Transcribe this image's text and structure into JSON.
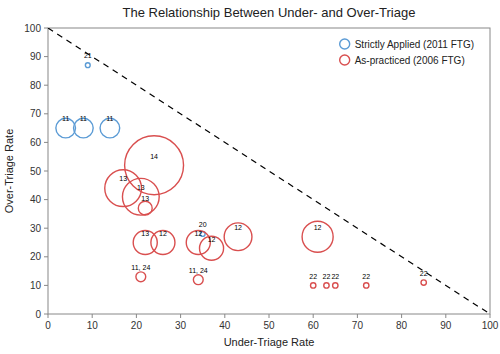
{
  "chart_data": {
    "type": "scatter",
    "title": "The Relationship Between Under- and Over-Triage",
    "xlabel": "Under-Triage Rate",
    "ylabel": "Over-Triage Rate",
    "xlim": [
      0,
      100
    ],
    "ylim": [
      0,
      100
    ],
    "xticks": [
      0,
      10,
      20,
      30,
      40,
      50,
      60,
      70,
      80,
      90,
      100
    ],
    "yticks": [
      0,
      10,
      20,
      30,
      40,
      50,
      60,
      70,
      80,
      90,
      100
    ],
    "grid": false,
    "legend": "upper right",
    "series": [
      {
        "name": "Strictly Applied (2011 FTG)",
        "color": "#5b9bd5",
        "marker": "circle",
        "x": [
          9,
          4,
          8,
          14,
          35
        ],
        "values": [
          87,
          65,
          65,
          65,
          28
        ],
        "sizes": [
          12,
          200,
          200,
          200,
          12
        ],
        "labels": [
          "21",
          "11",
          "11",
          "11",
          "20"
        ]
      },
      {
        "name": "As-practiced (2006 FTG)",
        "color": "#d94f4f",
        "marker": "circle",
        "x": [
          17,
          21,
          22,
          24,
          22,
          26,
          21,
          34,
          37,
          43,
          34,
          60,
          63,
          65,
          72,
          61,
          85
        ],
        "values": [
          44,
          41,
          37,
          52,
          25,
          25,
          13,
          25,
          23,
          27,
          12,
          10,
          10,
          10,
          10,
          27,
          11
        ],
        "sizes": [
          700,
          700,
          100,
          1800,
          300,
          300,
          50,
          300,
          300,
          400,
          50,
          15,
          15,
          15,
          15,
          500,
          15
        ],
        "labels": [
          "13",
          "13",
          "13",
          "14",
          "13",
          "12",
          "11, 24",
          "12",
          "12",
          "12",
          "11, 24",
          "22",
          "22",
          "22",
          "22",
          "12",
          "22"
        ]
      },
      {
        "type": "line",
        "line_style": "dashed",
        "color": "#000000",
        "x": [
          0,
          100
        ],
        "values": [
          100,
          0
        ]
      }
    ]
  }
}
